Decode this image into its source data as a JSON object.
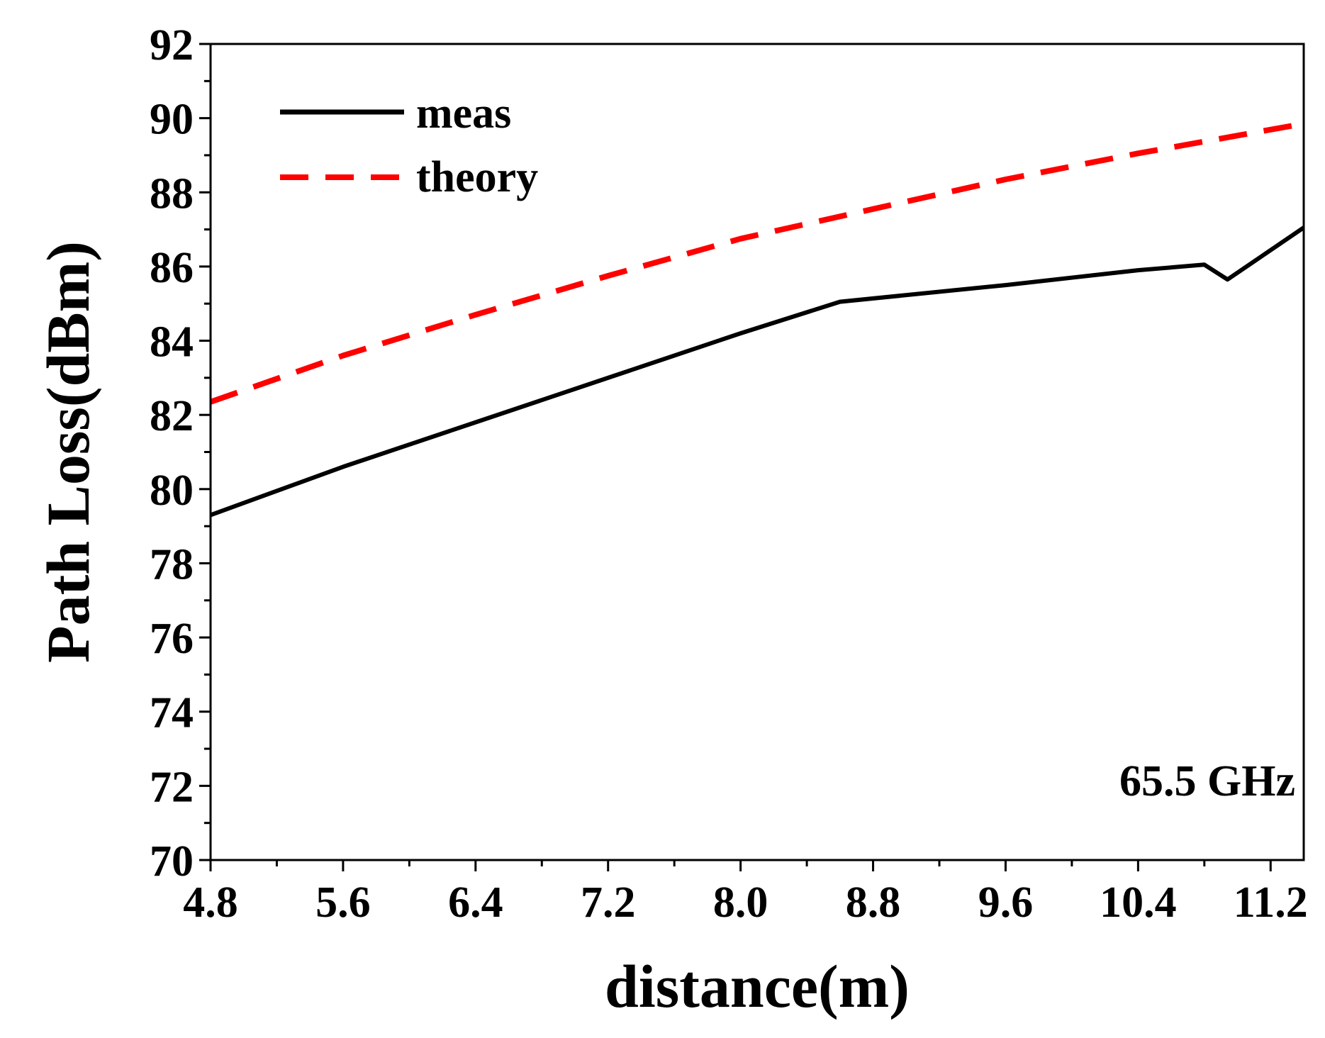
{
  "chart_data": {
    "type": "line",
    "title": "",
    "xlabel": "distance(m)",
    "ylabel": "Path Loss(dBm)",
    "xlim": [
      4.8,
      11.4
    ],
    "ylim": [
      70,
      92
    ],
    "x_ticks": [
      4.8,
      5.6,
      6.4,
      7.2,
      8.0,
      8.8,
      9.6,
      10.4,
      11.2
    ],
    "x_tick_labels": [
      "4.8",
      "5.6",
      "6.4",
      "7.2",
      "8.0",
      "8.8",
      "9.6",
      "10.4",
      "11.2"
    ],
    "y_ticks": [
      70,
      72,
      74,
      76,
      78,
      80,
      82,
      84,
      86,
      88,
      90,
      92
    ],
    "y_tick_labels": [
      "70",
      "72",
      "74",
      "76",
      "78",
      "80",
      "82",
      "84",
      "86",
      "88",
      "90",
      "92"
    ],
    "grid": false,
    "legend_position": "top-left",
    "annotation": "65.5 GHz",
    "series": [
      {
        "name": "meas",
        "color": "#000000",
        "style": "solid",
        "x": [
          4.8,
          5.6,
          6.4,
          7.2,
          8.0,
          8.6,
          9.6,
          10.4,
          10.8,
          10.94,
          11.4
        ],
        "y": [
          79.3,
          80.6,
          81.8,
          83.0,
          84.2,
          85.05,
          85.5,
          85.9,
          86.05,
          85.65,
          87.05
        ]
      },
      {
        "name": "theory",
        "color": "#ff0000",
        "style": "dashed",
        "x": [
          4.8,
          5.6,
          6.4,
          7.2,
          8.0,
          8.8,
          9.6,
          10.4,
          11.4
        ],
        "y": [
          82.35,
          83.6,
          84.7,
          85.75,
          86.75,
          87.55,
          88.35,
          89.05,
          89.85
        ]
      }
    ]
  }
}
